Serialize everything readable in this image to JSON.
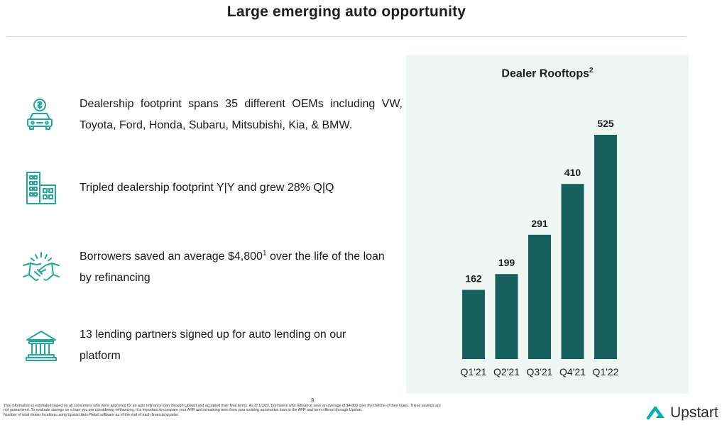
{
  "slide": {
    "title": "Large emerging auto opportunity",
    "page_number": "8"
  },
  "bullets": [
    {
      "icon": "car-dollar-icon",
      "text": "Dealership footprint spans 35 different OEMs including VW, Toyota, Ford, Honda, Subaru, Mitsubishi, Kia, & BMW."
    },
    {
      "icon": "buildings-icon",
      "text": "Tripled dealership footprint Y|Y and grew 28% Q|Q"
    },
    {
      "icon": "handshake-icon",
      "text_before": "Borrowers saved an average $4,800",
      "sup": "1",
      "text_after": " over the life of the loan by refinancing"
    },
    {
      "icon": "bank-icon",
      "text": "13 lending partners signed up for auto lending on our platform"
    }
  ],
  "chart_data": {
    "type": "bar",
    "title": "Dealer Rooftops",
    "title_sup": "2",
    "categories": [
      "Q1'21",
      "Q2'21",
      "Q3'21",
      "Q4'21",
      "Q1'22"
    ],
    "values": [
      162,
      199,
      291,
      410,
      525
    ],
    "data_labels": [
      "162",
      "199",
      "291",
      "410",
      "525"
    ],
    "xlabel": "",
    "ylabel": "",
    "ylim": [
      0,
      525
    ],
    "grid": false,
    "legend": "none",
    "bar_color": "#17605d",
    "panel_color": "#eef7f4"
  },
  "footnotes": [
    "This information is estimated based on all consumers who were approved for an auto refinance loan through Upstart and accepted their final terms. As of 1/1/22, borrowers who refinance save an average of $4,800 over the lifetime of their loans. These savings are not guaranteed. To evaluate savings on a loan you are considering refinancing, it is important to compare your APR and remaining term from your existing automotive loan to the APR and term offered through Upstart.",
    "Number of total dealer locations using Upstart Auto Retail software as of the end of each financial quarter."
  ],
  "brand": {
    "name": "Upstart",
    "icon": "upstart-logo-icon",
    "color": "#00b2a9"
  },
  "colors": {
    "icon_teal": "#1fa99b"
  }
}
